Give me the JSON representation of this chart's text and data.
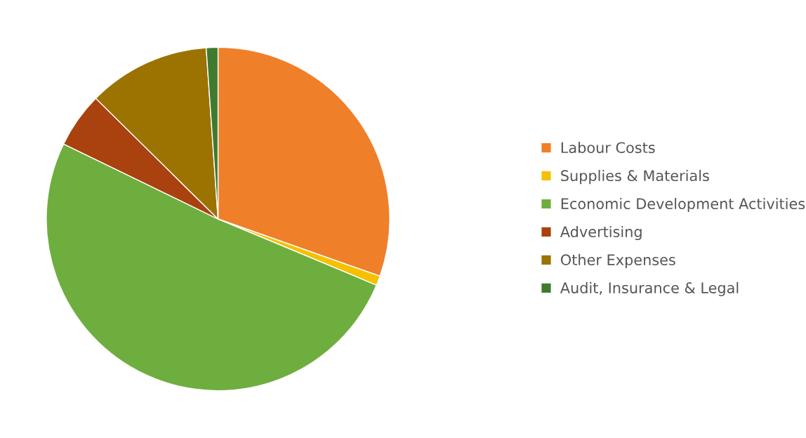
{
  "chart_data": {
    "type": "pie",
    "categories": [
      "Labour Costs",
      "Supplies & Materials",
      "Economic Development Activities",
      "Advertising",
      "Other Expenses",
      "Audit, Insurance & Legal"
    ],
    "values": [
      30.4,
      0.9,
      50.9,
      5.2,
      11.5,
      1.1
    ],
    "colors": [
      "#f07f2a",
      "#f5c000",
      "#6eae3e",
      "#a9420f",
      "#9c7200",
      "#3f7a2e"
    ],
    "legend": "right"
  }
}
